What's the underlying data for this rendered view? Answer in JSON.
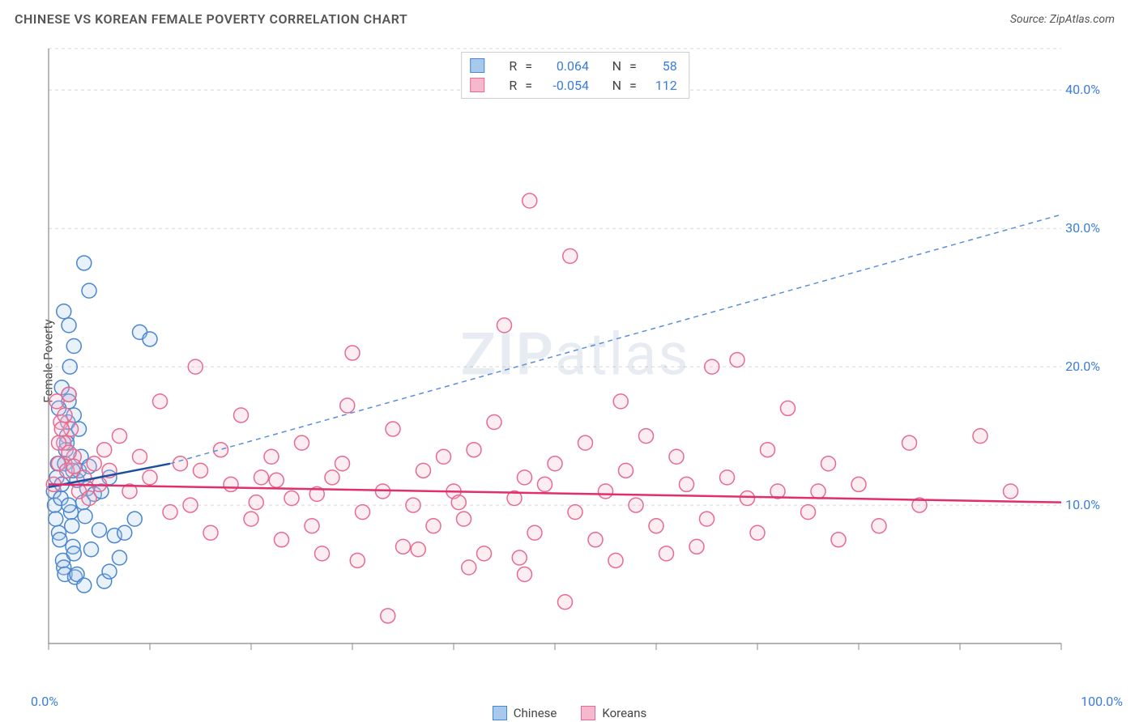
{
  "title": "CHINESE VS KOREAN FEMALE POVERTY CORRELATION CHART",
  "source_prefix": "Source: ",
  "source_name": "ZipAtlas.com",
  "y_axis_label": "Female Poverty",
  "watermark": "ZIPatlas",
  "chart": {
    "type": "scatter",
    "xlim": [
      0,
      100
    ],
    "ylim": [
      0,
      43
    ],
    "x_ticks": [
      0,
      10,
      20,
      30,
      40,
      50,
      60,
      70,
      80,
      90,
      100
    ],
    "y_gridlines": [
      10,
      20,
      30,
      40
    ],
    "y_tick_labels": [
      "10.0%",
      "20.0%",
      "30.0%",
      "40.0%"
    ],
    "x_corner_left": "0.0%",
    "x_corner_right": "100.0%",
    "background_color": "#ffffff",
    "grid_color": "#d8d8d8",
    "grid_dash": "4,4",
    "axis_color": "#888888",
    "tick_color": "#888888",
    "marker_radius": 9,
    "marker_stroke_width": 1.5,
    "marker_fill_opacity": 0.25,
    "series": [
      {
        "name": "Chinese",
        "color_stroke": "#4a86d0",
        "color_fill": "#a8c8ec",
        "R": "0.064",
        "N": "58",
        "trend_solid": {
          "x1": 0,
          "y1": 11.3,
          "x2": 12,
          "y2": 13.0,
          "color": "#1c4ea0",
          "width": 2.5
        },
        "trend_dashed": {
          "x1": 12,
          "y1": 13.0,
          "x2": 100,
          "y2": 31.0,
          "color": "#5a8fd6",
          "width": 1.5,
          "dash": "6,5"
        },
        "points": [
          [
            0.5,
            11
          ],
          [
            0.6,
            10
          ],
          [
            0.7,
            9
          ],
          [
            0.8,
            12
          ],
          [
            0.9,
            13
          ],
          [
            1.0,
            8
          ],
          [
            1.1,
            7.5
          ],
          [
            1.2,
            10.5
          ],
          [
            1.3,
            11.5
          ],
          [
            1.4,
            6
          ],
          [
            1.5,
            5.5
          ],
          [
            1.6,
            5
          ],
          [
            1.7,
            14
          ],
          [
            1.8,
            15
          ],
          [
            1.9,
            16
          ],
          [
            2.0,
            18
          ],
          [
            2.1,
            20
          ],
          [
            2.2,
            9.5
          ],
          [
            2.3,
            8.5
          ],
          [
            2.4,
            7
          ],
          [
            2.5,
            6.5
          ],
          [
            2.6,
            4.8
          ],
          [
            2.8,
            11.8
          ],
          [
            3.0,
            12.5
          ],
          [
            3.2,
            13.5
          ],
          [
            3.4,
            10.2
          ],
          [
            3.6,
            9.2
          ],
          [
            3.8,
            11.2
          ],
          [
            4.0,
            12.8
          ],
          [
            4.5,
            10.8
          ],
          [
            5.0,
            8.2
          ],
          [
            5.5,
            4.5
          ],
          [
            6.0,
            5.2
          ],
          [
            6.5,
            7.8
          ],
          [
            7.0,
            6.2
          ],
          [
            3.5,
            27.5
          ],
          [
            4.0,
            25.5
          ],
          [
            1.5,
            24.0
          ],
          [
            2.0,
            23.0
          ],
          [
            2.5,
            21.5
          ],
          [
            9.0,
            22.5
          ],
          [
            10.0,
            22.0
          ],
          [
            2.0,
            17.5
          ],
          [
            2.5,
            16.5
          ],
          [
            3.0,
            15.5
          ],
          [
            1.8,
            14.5
          ],
          [
            2.8,
            5.0
          ],
          [
            3.5,
            4.2
          ],
          [
            4.2,
            6.8
          ],
          [
            5.2,
            11.0
          ],
          [
            6.0,
            12.0
          ],
          [
            7.5,
            8.0
          ],
          [
            8.5,
            9.0
          ],
          [
            1.0,
            17.0
          ],
          [
            1.3,
            18.5
          ],
          [
            1.6,
            13.0
          ],
          [
            2.0,
            10.0
          ],
          [
            2.4,
            12.5
          ]
        ]
      },
      {
        "name": "Koreans",
        "color_stroke": "#e86b8f",
        "color_fill": "#f5b8cc",
        "R": "-0.054",
        "N": "112",
        "trend_solid": {
          "x1": 0,
          "y1": 11.5,
          "x2": 100,
          "y2": 10.2,
          "color": "#e22f6a",
          "width": 2.5
        },
        "trend_dashed": null,
        "points": [
          [
            0.5,
            11.5
          ],
          [
            0.8,
            17.5
          ],
          [
            1.0,
            13.0
          ],
          [
            1.2,
            16.0
          ],
          [
            1.5,
            14.5
          ],
          [
            1.8,
            12.5
          ],
          [
            2.0,
            18.0
          ],
          [
            2.2,
            15.5
          ],
          [
            2.5,
            13.5
          ],
          [
            3.0,
            11.0
          ],
          [
            3.5,
            12.0
          ],
          [
            4.0,
            10.5
          ],
          [
            4.5,
            13.0
          ],
          [
            5.0,
            11.5
          ],
          [
            5.5,
            14.0
          ],
          [
            6.0,
            12.5
          ],
          [
            7.0,
            15.0
          ],
          [
            8.0,
            11.0
          ],
          [
            9.0,
            13.5
          ],
          [
            10.0,
            12.0
          ],
          [
            11.0,
            17.5
          ],
          [
            12.0,
            9.5
          ],
          [
            13.0,
            13.0
          ],
          [
            14.0,
            10.0
          ],
          [
            15.0,
            12.5
          ],
          [
            16.0,
            8.0
          ],
          [
            17.0,
            14.0
          ],
          [
            18.0,
            11.5
          ],
          [
            19.0,
            16.5
          ],
          [
            20.0,
            9.0
          ],
          [
            21.0,
            12.0
          ],
          [
            22.0,
            13.5
          ],
          [
            23.0,
            7.5
          ],
          [
            24.0,
            10.5
          ],
          [
            25.0,
            14.5
          ],
          [
            26.0,
            8.5
          ],
          [
            27.0,
            6.5
          ],
          [
            28.0,
            12.0
          ],
          [
            29.0,
            13.0
          ],
          [
            30.0,
            21.0
          ],
          [
            31.0,
            9.5
          ],
          [
            33.0,
            11.0
          ],
          [
            34.0,
            15.5
          ],
          [
            35.0,
            7.0
          ],
          [
            36.0,
            10.0
          ],
          [
            37.0,
            12.5
          ],
          [
            38.0,
            8.5
          ],
          [
            39.0,
            13.5
          ],
          [
            40.0,
            11.0
          ],
          [
            41.0,
            9.0
          ],
          [
            42.0,
            14.0
          ],
          [
            43.0,
            6.5
          ],
          [
            44.0,
            16.0
          ],
          [
            45.0,
            23.0
          ],
          [
            46.0,
            10.5
          ],
          [
            47.0,
            12.0
          ],
          [
            47.5,
            32.0
          ],
          [
            48.0,
            8.0
          ],
          [
            49.0,
            11.5
          ],
          [
            50.0,
            13.0
          ],
          [
            51.0,
            3.0
          ],
          [
            51.5,
            28.0
          ],
          [
            52.0,
            9.5
          ],
          [
            53.0,
            14.5
          ],
          [
            54.0,
            7.5
          ],
          [
            55.0,
            11.0
          ],
          [
            56.0,
            6.0
          ],
          [
            57.0,
            12.5
          ],
          [
            58.0,
            10.0
          ],
          [
            59.0,
            15.0
          ],
          [
            60.0,
            8.5
          ],
          [
            62.0,
            13.5
          ],
          [
            63.0,
            11.5
          ],
          [
            64.0,
            7.0
          ],
          [
            65.0,
            9.0
          ],
          [
            67.0,
            12.0
          ],
          [
            68.0,
            20.5
          ],
          [
            69.0,
            10.5
          ],
          [
            70.0,
            8.0
          ],
          [
            71.0,
            14.0
          ],
          [
            72.0,
            11.0
          ],
          [
            73.0,
            17.0
          ],
          [
            75.0,
            9.5
          ],
          [
            77.0,
            13.0
          ],
          [
            78.0,
            7.5
          ],
          [
            80.0,
            11.5
          ],
          [
            82.0,
            8.5
          ],
          [
            85.0,
            14.5
          ],
          [
            86.0,
            10.0
          ],
          [
            92.0,
            15.0
          ],
          [
            95.0,
            11.0
          ],
          [
            33.5,
            2.0
          ],
          [
            30.5,
            6.0
          ],
          [
            41.5,
            5.5
          ],
          [
            1.0,
            14.5
          ],
          [
            1.3,
            15.5
          ],
          [
            1.6,
            16.5
          ],
          [
            2.0,
            13.8
          ],
          [
            2.5,
            12.8
          ],
          [
            14.5,
            20.0
          ],
          [
            20.5,
            10.2
          ],
          [
            22.5,
            11.8
          ],
          [
            26.5,
            10.8
          ],
          [
            29.5,
            17.2
          ],
          [
            36.5,
            6.8
          ],
          [
            40.5,
            10.2
          ],
          [
            46.5,
            6.2
          ],
          [
            56.5,
            17.5
          ],
          [
            61.0,
            6.5
          ],
          [
            65.5,
            20.0
          ],
          [
            76.0,
            11.0
          ],
          [
            47.0,
            5.0
          ]
        ]
      }
    ]
  },
  "legend": {
    "items": [
      {
        "label": "Chinese",
        "fill": "#a8c8ec",
        "stroke": "#4a86d0"
      },
      {
        "label": "Koreans",
        "fill": "#f5b8cc",
        "stroke": "#e86b8f"
      }
    ]
  },
  "stats_box": {
    "r_label": "R",
    "eq": "=",
    "n_label": "N"
  }
}
